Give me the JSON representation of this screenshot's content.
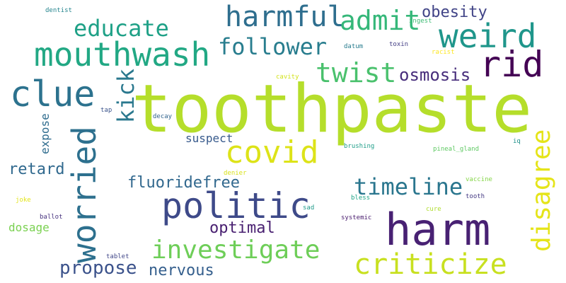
{
  "words": [
    {
      "text": "toothpaste",
      "color": "#b5de2b"
    },
    {
      "text": "harm",
      "color": "#482173"
    },
    {
      "text": "politic",
      "color": "#3e4a89"
    },
    {
      "text": "weird",
      "color": "#1f968b"
    },
    {
      "text": "rid",
      "color": "#440154"
    },
    {
      "text": "clue",
      "color": "#2c728e"
    },
    {
      "text": "mouthwash",
      "color": "#22a884"
    },
    {
      "text": "harmful",
      "color": "#2e6e8e"
    },
    {
      "text": "covid",
      "color": "#dde318"
    },
    {
      "text": "worried",
      "color": "#2d708e"
    },
    {
      "text": "criticize",
      "color": "#c8e020"
    },
    {
      "text": "disagree",
      "color": "#e5e419"
    },
    {
      "text": "investigate",
      "color": "#6ece58"
    },
    {
      "text": "twist",
      "color": "#4ac16d"
    },
    {
      "text": "admit",
      "color": "#35b779"
    },
    {
      "text": "educate",
      "color": "#1fa187"
    },
    {
      "text": "follower",
      "color": "#287d8e"
    },
    {
      "text": "kick",
      "color": "#2a788e"
    },
    {
      "text": "timeline",
      "color": "#2a768e"
    },
    {
      "text": "osmosis",
      "color": "#472d7b"
    },
    {
      "text": "obesity",
      "color": "#414487"
    },
    {
      "text": "propose",
      "color": "#3b528b"
    },
    {
      "text": "fluoridefree",
      "color": "#31688e"
    },
    {
      "text": "optimal",
      "color": "#481f70"
    },
    {
      "text": "nervous",
      "color": "#355f8d"
    },
    {
      "text": "retard",
      "color": "#30698e"
    },
    {
      "text": "suspect",
      "color": "#375a8c"
    },
    {
      "text": "dosage",
      "color": "#7ad151"
    },
    {
      "text": "expose",
      "color": "#2f6c8e"
    },
    {
      "text": "dentist",
      "color": "#25858e"
    },
    {
      "text": "ingest",
      "color": "#3dbc74"
    },
    {
      "text": "datum",
      "color": "#287c8e"
    },
    {
      "text": "toxin",
      "color": "#433e85"
    },
    {
      "text": "racist",
      "color": "#fde725"
    },
    {
      "text": "cavity",
      "color": "#d2e21b"
    },
    {
      "text": "tap",
      "color": "#3a538b"
    },
    {
      "text": "decay",
      "color": "#32648e"
    },
    {
      "text": "brushing",
      "color": "#1f9e89"
    },
    {
      "text": "pineal_gland",
      "color": "#5ec962"
    },
    {
      "text": "iq",
      "color": "#21918c"
    },
    {
      "text": "denier",
      "color": "#d8e219"
    },
    {
      "text": "vaccine",
      "color": "#86d549"
    },
    {
      "text": "bless",
      "color": "#20a486"
    },
    {
      "text": "tooth",
      "color": "#443983"
    },
    {
      "text": "joke",
      "color": "#e2e418"
    },
    {
      "text": "ballot",
      "color": "#46327e"
    },
    {
      "text": "sad",
      "color": "#1f9a8a"
    },
    {
      "text": "cure",
      "color": "#b0dd2f"
    },
    {
      "text": "systemic",
      "color": "#481b6d"
    },
    {
      "text": "tablet",
      "color": "#404688"
    }
  ]
}
